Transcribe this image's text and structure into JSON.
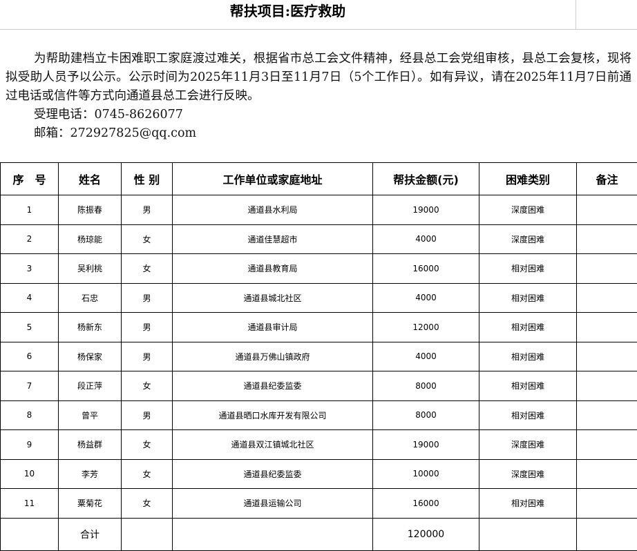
{
  "header": {
    "title": "帮扶项目:医疗救助"
  },
  "notice": {
    "paragraph": "为帮助建档立卡困难职工家庭渡过难关，根据省市总工会文件精神，经县总工会党组审核，县总工会复核，现将拟受助人员予以公示。公示时间为2025年11月3日至11月7日（5个工作日）。如有异议，请在2025年11月7日前通过电话或信件等方式向通道县总工会进行反映。",
    "phone": "受理电话：0745-8626077",
    "email": "邮箱：272927825@qq.com"
  },
  "table": {
    "columns": [
      "序　号",
      "姓名",
      "性 别",
      "工作单位或家庭地址",
      "帮扶金额(元)",
      "困难类别",
      "备注"
    ],
    "rows": [
      [
        1,
        "陈振春",
        "男",
        "通道县水利局",
        19000,
        "深度困难"
      ],
      [
        2,
        "杨琼能",
        "女",
        "通道佳慧超市",
        4000,
        "深度困难"
      ],
      [
        3,
        "吴利桃",
        "女",
        "通道县教育局",
        16000,
        "相对困难"
      ],
      [
        4,
        "石忠",
        "男",
        "通道县城北社区",
        4000,
        "相对困难"
      ],
      [
        5,
        "杨新东",
        "男",
        "通道县审计局",
        12000,
        "相对困难"
      ],
      [
        6,
        "杨保家",
        "男",
        "通道县万佛山镇政府",
        4000,
        "相对困难"
      ],
      [
        7,
        "段正萍",
        "女",
        "通道县纪委监委",
        8000,
        "相对困难"
      ],
      [
        8,
        "曾平",
        "男",
        "通道县晒口水库开发有限公司",
        8000,
        "相对困难"
      ],
      [
        9,
        "杨益群",
        "女",
        "通道县双江镇城北社区",
        19000,
        "深度困难"
      ],
      [
        10,
        "李芳",
        "女",
        "通道县纪委监委",
        10000,
        "深度困难"
      ],
      [
        11,
        "粟菊花",
        "女",
        "通道县运输公司",
        16000,
        "相对困难"
      ]
    ],
    "total": {
      "label": "合计",
      "amount": 120000
    }
  }
}
